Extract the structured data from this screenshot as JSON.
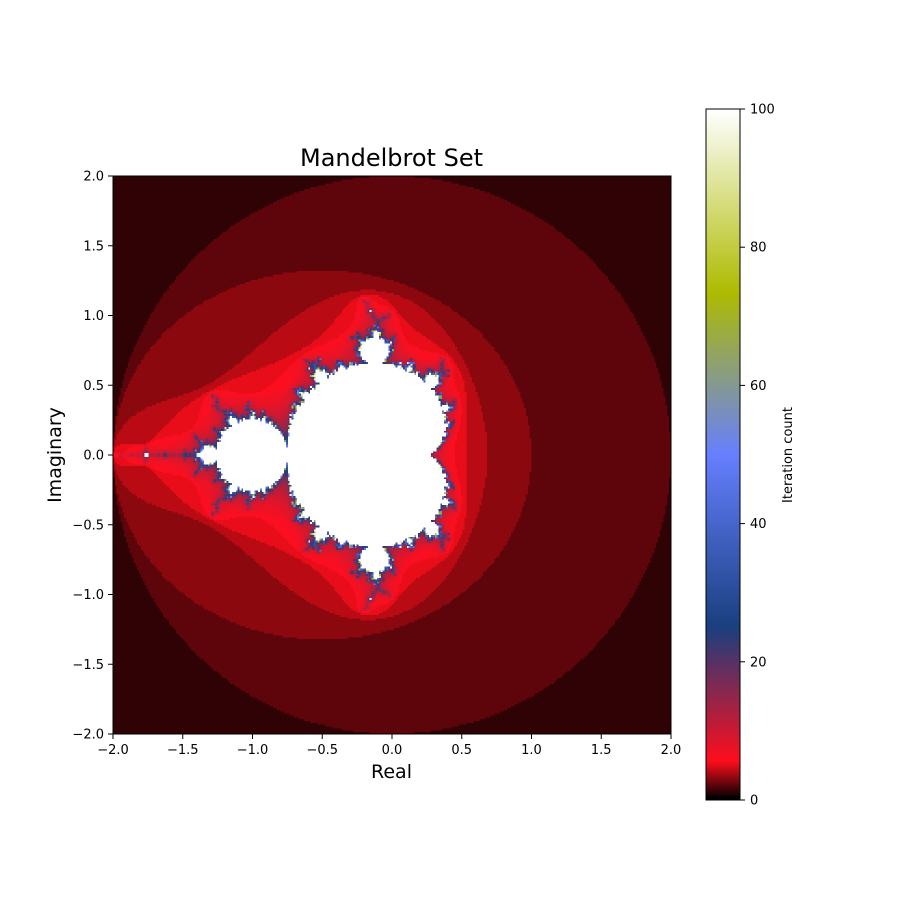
{
  "chart_data": {
    "type": "heatmap",
    "title": "Mandelbrot Set",
    "xlabel": "Real",
    "ylabel": "Imaginary",
    "xlim": [
      -2.0,
      2.0
    ],
    "ylim": [
      -2.0,
      2.0
    ],
    "x_ticks": [
      "−2.0",
      "−1.5",
      "−1.0",
      "−0.5",
      "0.0",
      "0.5",
      "1.0",
      "1.5",
      "2.0"
    ],
    "y_ticks": [
      "−2.0",
      "−1.5",
      "−1.0",
      "−0.5",
      "0.0",
      "0.5",
      "1.0",
      "1.5",
      "2.0"
    ],
    "x_tick_values": [
      -2.0,
      -1.5,
      -1.0,
      -0.5,
      0.0,
      0.5,
      1.0,
      1.5,
      2.0
    ],
    "y_tick_values": [
      -2.0,
      -1.5,
      -1.0,
      -0.5,
      0.0,
      0.5,
      1.0,
      1.5,
      2.0
    ],
    "max_iterations": 100,
    "escape_radius": 2.0,
    "grid_resolution": 300,
    "colormap": "gist_stern-like (black → red → navy → blue → olive → white)",
    "colorbar": {
      "label": "Iteration count",
      "range": [
        0,
        100
      ],
      "ticks": [
        "0",
        "20",
        "40",
        "60",
        "80",
        "100"
      ],
      "tick_values": [
        0,
        20,
        40,
        60,
        80,
        100
      ],
      "position": "right"
    },
    "grid": false
  }
}
